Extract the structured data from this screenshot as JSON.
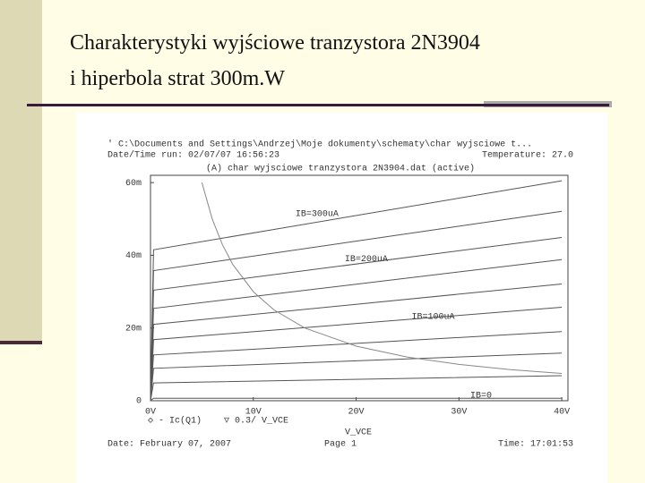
{
  "slide": {
    "title_lines": [
      "Charakterystyki wyjściowe tranzystora 2N3904",
      "i hiperbola strat 300m.W"
    ]
  },
  "chart_data": {
    "type": "line",
    "header_path": "' C:\\Documents and Settings\\Andrzej\\Moje dokumenty\\schematy\\char wyjsciowe t...",
    "run_date": "Date/Time run: 02/07/07 16:56:23",
    "temperature": "Temperature: 27.0",
    "title": "(A) char wyjsciowe tranzystora 2N3904.dat (active)",
    "x_label": "V_VCE",
    "legend_items": [
      "◇ - Ic(Q1)",
      "▽ 0.3/ V_VCE"
    ],
    "footer_date": "Date: February 07, 2007",
    "footer_page": "Page 1",
    "footer_time": "Time: 17:01:53",
    "x": [
      0,
      0.3,
      40
    ],
    "xlim": [
      0,
      40.6
    ],
    "xticks": [
      {
        "value": 0,
        "label": "0V"
      },
      {
        "value": 10,
        "label": "10V"
      },
      {
        "value": 20,
        "label": "20V"
      },
      {
        "value": 30,
        "label": "30V"
      },
      {
        "value": 40,
        "label": "40V"
      }
    ],
    "ylim": [
      0,
      0.062
    ],
    "yticks": [
      0,
      {
        "value": 0.02,
        "label": "20m"
      },
      {
        "value": 0.04,
        "label": "40m"
      },
      {
        "value": 0.06,
        "label": "60m"
      }
    ],
    "series": [
      {
        "color": "#555555",
        "values": [
          0,
          0.0415,
          0.0605
        ]
      },
      {
        "color": "#555555",
        "values": [
          0,
          0.0358,
          0.0521
        ]
      },
      {
        "color": "#555555",
        "values": [
          0,
          0.0304,
          0.0449
        ]
      },
      {
        "color": "#555555",
        "values": [
          0,
          0.0254,
          0.0388
        ]
      },
      {
        "color": "#555555",
        "values": [
          0,
          0.021,
          0.0321
        ]
      },
      {
        "color": "#555555",
        "values": [
          0,
          0.0168,
          0.0257
        ]
      },
      {
        "color": "#555555",
        "values": [
          0,
          0.0126,
          0.019
        ]
      },
      {
        "color": "#555555",
        "values": [
          0,
          0.0089,
          0.0131
        ]
      },
      {
        "color": "#555555",
        "values": [
          0,
          0.0049,
          0.0069
        ]
      },
      {
        "color": "#555555",
        "values": [
          0,
          0.0007,
          0.0007
        ]
      }
    ],
    "hyperbola": {
      "color": "#888888",
      "x": [
        5,
        6,
        7,
        8,
        10,
        12,
        15,
        20,
        25,
        30,
        35,
        40
      ],
      "values": [
        0.06,
        0.05,
        0.0429,
        0.0375,
        0.03,
        0.025,
        0.02,
        0.015,
        0.012,
        0.01,
        0.00857,
        0.0075
      ]
    },
    "annotations": [
      {
        "text": "IB=300uA",
        "x": 14.1,
        "y": 0.0514
      },
      {
        "text": "IB=200uA",
        "x": 18.9,
        "y": 0.039
      },
      {
        "text": "IB=100uA",
        "x": 25.4,
        "y": 0.0232
      },
      {
        "text": "IB=0",
        "x": 31.1,
        "y": 0.0015
      }
    ]
  }
}
